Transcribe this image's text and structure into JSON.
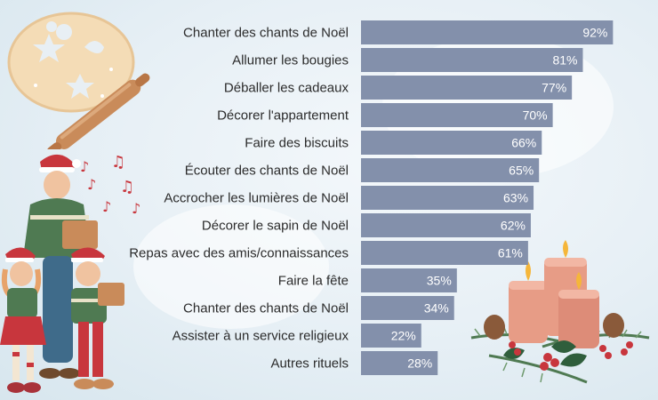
{
  "chart_data": {
    "type": "bar",
    "orientation": "horizontal",
    "title": "",
    "xlabel": "",
    "ylabel": "",
    "xlim": [
      0,
      100
    ],
    "grid": false,
    "bar_color": "#8390ab",
    "categories": [
      "Chanter des chants de Noël",
      "Allumer les bougies",
      "Déballer les cadeaux",
      "Décorer l'appartement",
      "Faire des biscuits",
      "Écouter des chants de Noël",
      "Accrocher les lumières de Noël",
      "Décorer le sapin de Noël",
      "Repas avec des amis/connaissances",
      "Faire la fête",
      "Chanter des chants de Noël",
      "Assister à un service religieux",
      "Autres rituels"
    ],
    "values": [
      92,
      81,
      77,
      70,
      66,
      65,
      63,
      62,
      61,
      35,
      34,
      22,
      28
    ],
    "value_labels": [
      "92%",
      "81%",
      "77%",
      "70%",
      "66%",
      "65%",
      "63%",
      "62%",
      "61%",
      "35%",
      "34%",
      "22%",
      "28%"
    ]
  },
  "decorations": {
    "top_left": "cookie-dough-icon",
    "left": "carol-singers-icon",
    "bottom_right": "advent-candles-icon",
    "accent_colors": [
      "#f2d9b3",
      "#c98b5a",
      "#4f7a52",
      "#c8363d",
      "#e79c86"
    ]
  }
}
